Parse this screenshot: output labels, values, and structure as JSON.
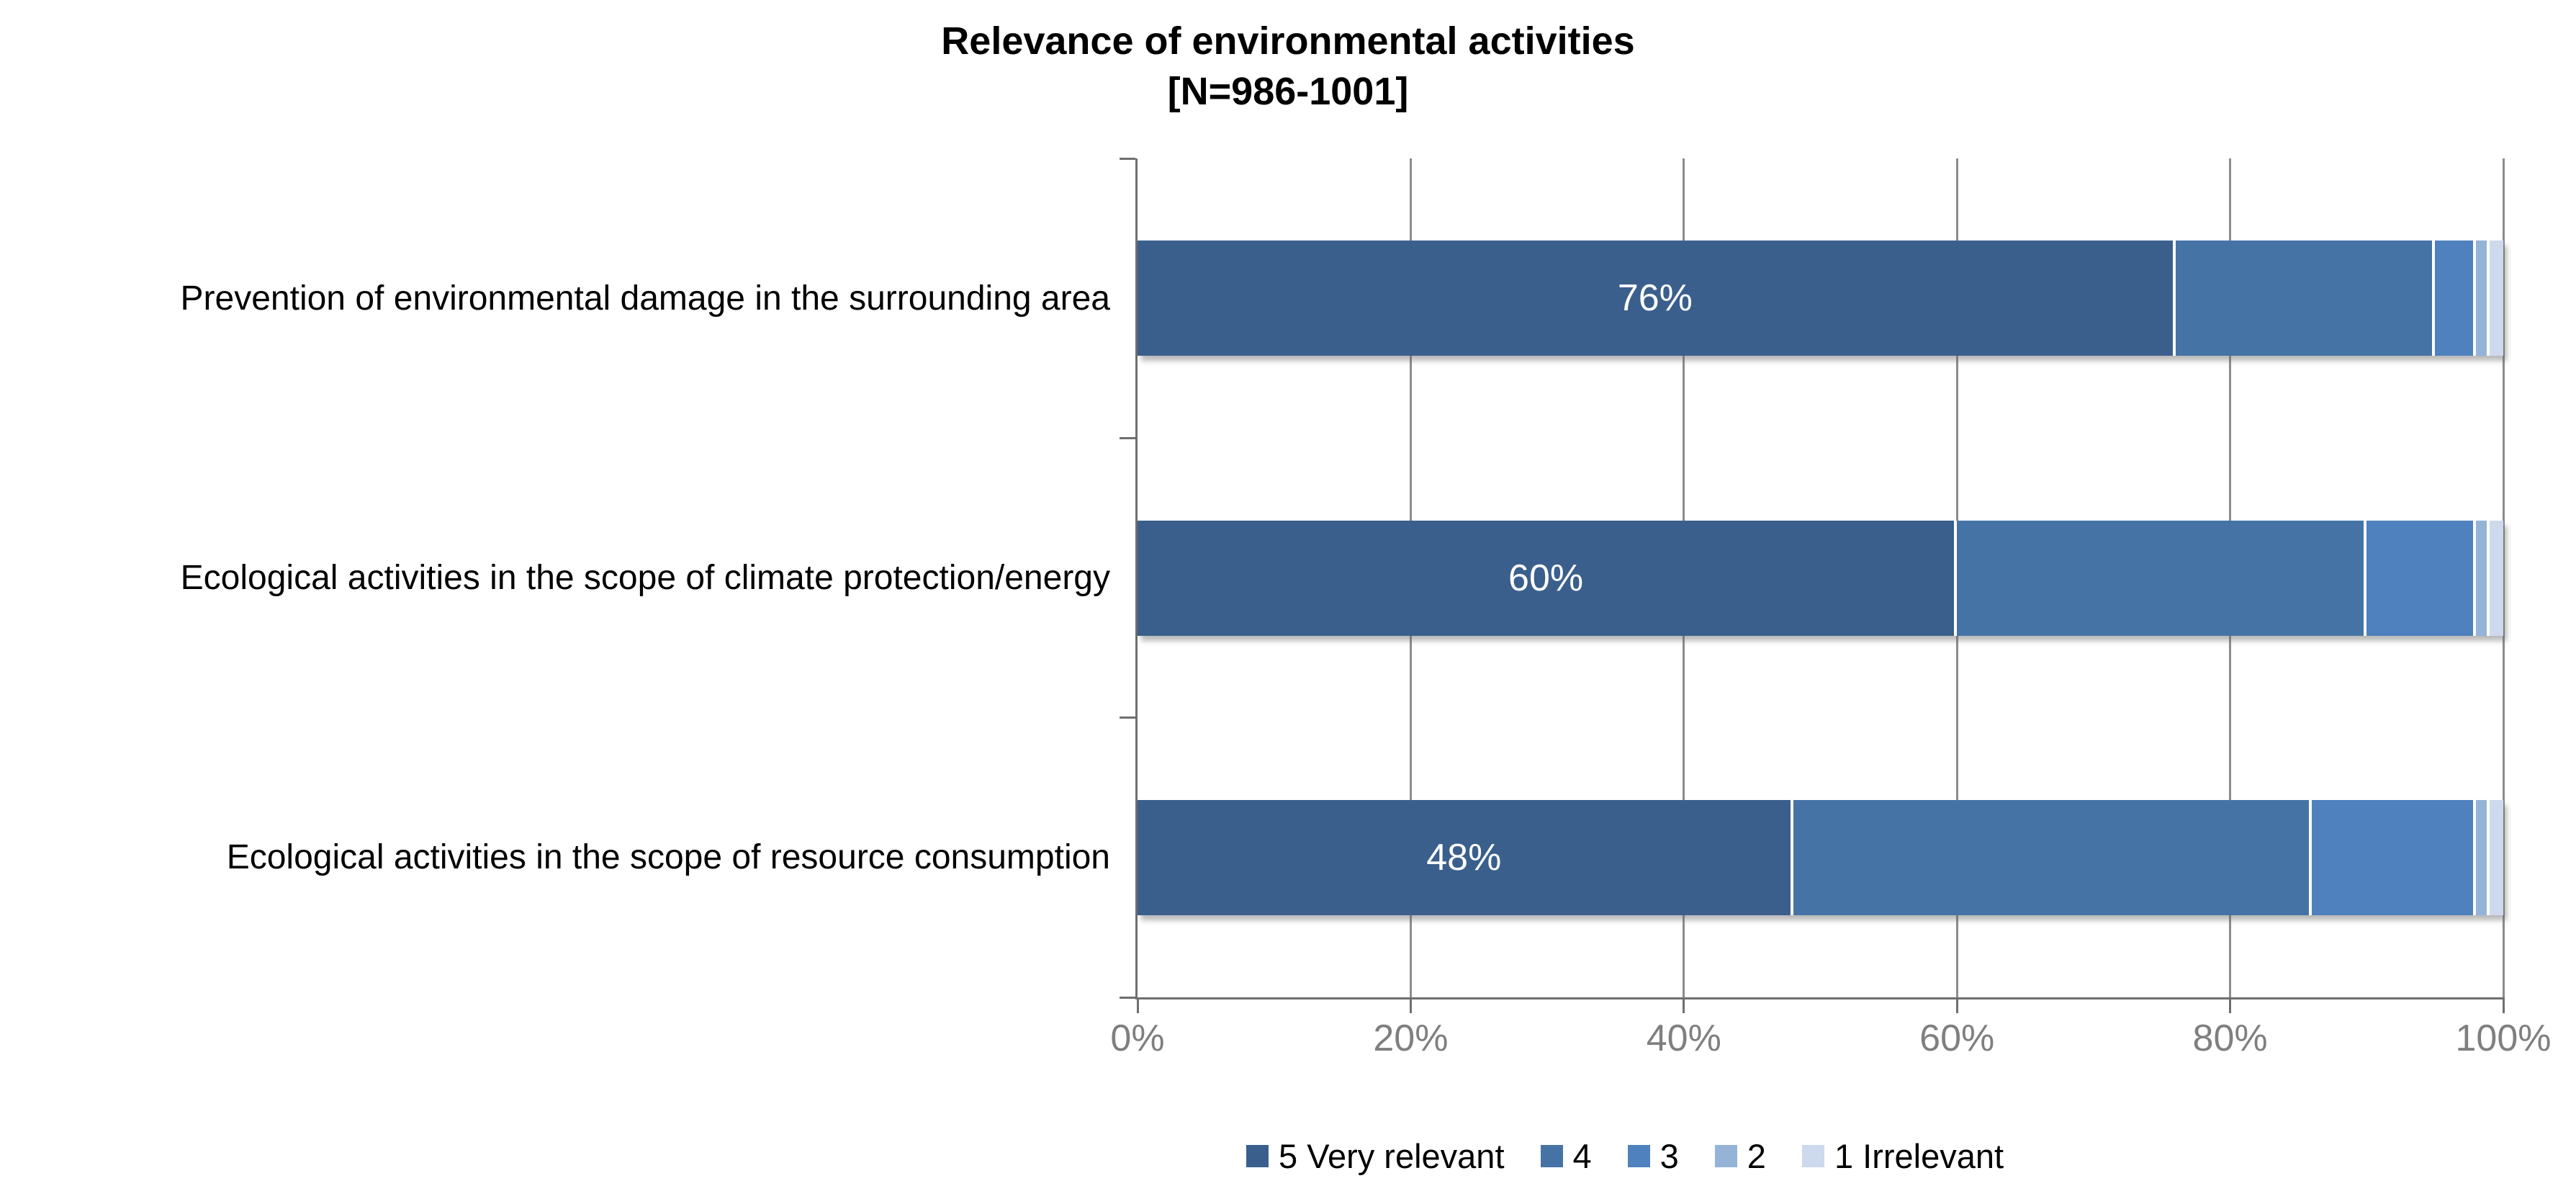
{
  "title": {
    "line1": "Relevance of environmental activities",
    "line2": "[N=986-1001]"
  },
  "colors": {
    "background": "#ffffff",
    "gridline": "#8c8c8c",
    "axis": "#6f6f6f",
    "title_text": "#000000",
    "axis_label_text": "#7f7f7f",
    "bar_label_text": "#ffffff"
  },
  "chart_data": {
    "type": "bar",
    "orientation": "horizontal",
    "stacked": true,
    "title": "Relevance of environmental activities",
    "subtitle": "[N=986-1001]",
    "categories": [
      "Prevention of environmental damage in the surrounding area",
      "Ecological activities in the scope of climate protection/energy",
      "Ecological activities in the scope of resource consumption"
    ],
    "series": [
      {
        "name": "5 Very relevant",
        "color": "#3a5f8c",
        "values": [
          76,
          60,
          48
        ]
      },
      {
        "name": "4",
        "color": "#4673a6",
        "values": [
          19,
          30,
          38
        ]
      },
      {
        "name": "3",
        "color": "#4e81bd",
        "values": [
          3,
          8,
          12
        ]
      },
      {
        "name": "2",
        "color": "#95b3d7",
        "values": [
          1,
          1,
          1
        ]
      },
      {
        "name": "1 Irrelevant",
        "color": "#cdd9ec",
        "values": [
          1,
          1,
          1
        ]
      }
    ],
    "data_labels_first_series": [
      "76%",
      "60%",
      "48%"
    ],
    "xlim": [
      0,
      100
    ],
    "x_tick_labels": [
      "0%",
      "20%",
      "40%",
      "60%",
      "80%",
      "100%"
    ],
    "grid": "vertical-only",
    "legend_position": "bottom"
  }
}
